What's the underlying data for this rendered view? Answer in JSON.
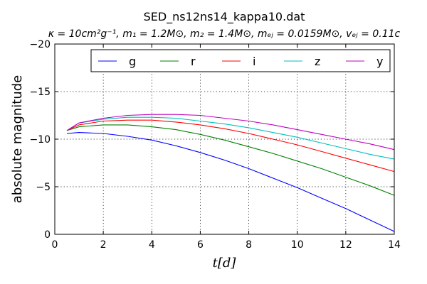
{
  "chart_data": {
    "type": "line",
    "title": "SED_ns12ns14_kappa10.dat",
    "subtitle": "κ = 10cm²g⁻¹, m₁ = 1.2M⊙, m₂ = 1.4M⊙, mₑⱼ = 0.0159M⊙, vₑⱼ = 0.11c",
    "xlabel": "t[d]",
    "ylabel": "absolute magnitude",
    "xlim": [
      0,
      14
    ],
    "ylim": [
      0,
      -20
    ],
    "y_inverted": true,
    "grid": true,
    "legend_position": "top",
    "x_ticks": [
      0,
      2,
      4,
      6,
      8,
      10,
      12,
      14
    ],
    "y_ticks": [
      0,
      -5,
      -10,
      -15,
      -20
    ],
    "x_tick_labels": [
      "0",
      "2",
      "4",
      "6",
      "8",
      "10",
      "12",
      "14"
    ],
    "y_tick_labels": [
      "0",
      "−5",
      "−10",
      "−15",
      "−20"
    ],
    "x": [
      0.5,
      1,
      2,
      3,
      4,
      5,
      6,
      7,
      8,
      9,
      10,
      11,
      12,
      13,
      14
    ],
    "series": [
      {
        "name": "g",
        "color": "#0000ff",
        "values": [
          -10.6,
          -10.7,
          -10.6,
          -10.3,
          -9.9,
          -9.3,
          -8.6,
          -7.8,
          -6.9,
          -5.9,
          -4.9,
          -3.8,
          -2.7,
          -1.5,
          -0.3
        ]
      },
      {
        "name": "r",
        "color": "#008000",
        "values": [
          -10.9,
          -11.3,
          -11.5,
          -11.5,
          -11.3,
          -11.0,
          -10.5,
          -9.9,
          -9.2,
          -8.5,
          -7.7,
          -6.9,
          -6.0,
          -5.1,
          -4.1
        ]
      },
      {
        "name": "i",
        "color": "#ff0000",
        "values": [
          -10.9,
          -11.5,
          -11.9,
          -12.0,
          -12.0,
          -11.8,
          -11.5,
          -11.1,
          -10.6,
          -10.0,
          -9.4,
          -8.7,
          -8.0,
          -7.3,
          -6.6
        ]
      },
      {
        "name": "z",
        "color": "#00bfbf",
        "values": [
          -10.9,
          -11.7,
          -12.1,
          -12.3,
          -12.3,
          -12.2,
          -11.9,
          -11.6,
          -11.2,
          -10.7,
          -10.2,
          -9.6,
          -9.0,
          -8.4,
          -7.9
        ]
      },
      {
        "name": "y",
        "color": "#bf00bf",
        "values": [
          -10.9,
          -11.7,
          -12.2,
          -12.5,
          -12.6,
          -12.6,
          -12.5,
          -12.2,
          -11.9,
          -11.5,
          -11.0,
          -10.5,
          -10.0,
          -9.5,
          -8.9
        ]
      }
    ]
  }
}
